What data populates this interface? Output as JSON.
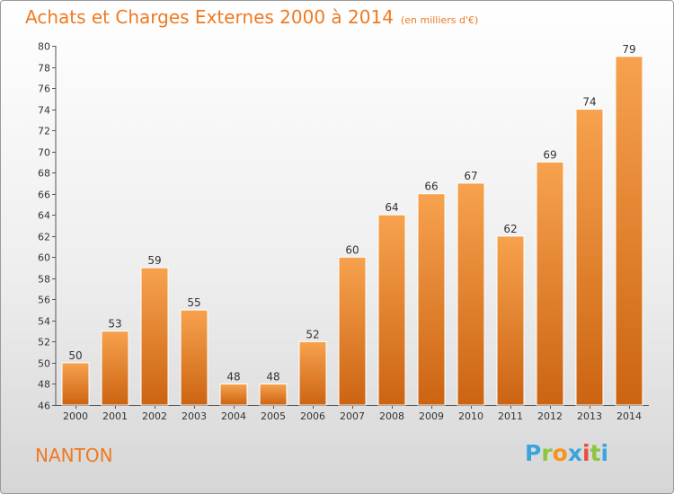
{
  "header": {
    "title": "Achats et Charges Externes 2000 à 2014",
    "unit": "(en milliers d'€)"
  },
  "footer": {
    "commune": "NANTON",
    "brand": {
      "letters": [
        "P",
        "r",
        "o",
        "x",
        "i",
        "t",
        "i"
      ],
      "colors": [
        "#3aa4dd",
        "#8cc63f",
        "#f7931e",
        "#3aa4dd",
        "#e94e3d",
        "#8cc63f",
        "#3aa4dd"
      ]
    }
  },
  "colors": {
    "bar_top": "#f7a24e",
    "bar_bottom": "#cc6412",
    "text": "#333333",
    "title": "#ee7a22"
  },
  "chart_data": {
    "type": "bar",
    "title": "Achats et Charges Externes 2000 à 2014",
    "subtitle": "(en milliers d'€)",
    "categories": [
      "2000",
      "2001",
      "2002",
      "2003",
      "2004",
      "2005",
      "2006",
      "2007",
      "2008",
      "2009",
      "2010",
      "2011",
      "2012",
      "2013",
      "2014"
    ],
    "values": [
      50,
      53,
      59,
      55,
      48,
      48,
      52,
      60,
      64,
      66,
      67,
      62,
      69,
      74,
      79
    ],
    "ylim": [
      46,
      80
    ],
    "yticks": [
      46,
      48,
      50,
      52,
      54,
      56,
      58,
      60,
      62,
      64,
      66,
      68,
      70,
      72,
      74,
      76,
      78,
      80
    ],
    "xlabel": "",
    "ylabel": "",
    "grid": false,
    "data_labels": true
  }
}
